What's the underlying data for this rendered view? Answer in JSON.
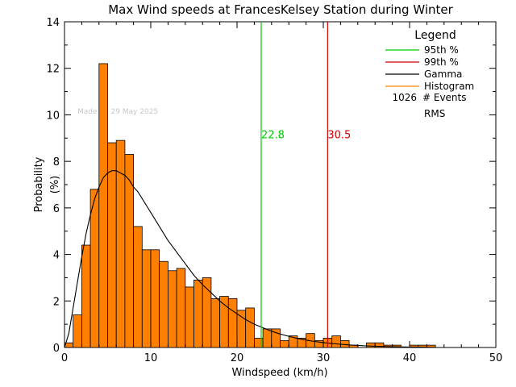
{
  "chart_data": {
    "type": "bar",
    "title": "Max Wind speeds at FrancesKelsey Station during Winter",
    "xlabel": "Windspeed (km/h)",
    "ylabel_lines": [
      "Probability",
      "(%)"
    ],
    "xlim": [
      0,
      50
    ],
    "ylim": [
      0,
      14
    ],
    "xticks": [
      "0",
      "10",
      "20",
      "30",
      "40",
      "50"
    ],
    "yticks": [
      "0",
      "2",
      "4",
      "6",
      "8",
      "10",
      "12",
      "14"
    ],
    "watermark": "Made on 29 May 2025",
    "bin_width": 1,
    "histogram": {
      "name": "Histogram",
      "bin_starts": [
        0,
        1,
        2,
        3,
        4,
        5,
        6,
        7,
        8,
        9,
        10,
        11,
        12,
        13,
        14,
        15,
        16,
        17,
        18,
        19,
        20,
        21,
        22,
        23,
        24,
        25,
        26,
        27,
        28,
        29,
        30,
        31,
        32,
        33,
        34,
        35,
        36,
        37,
        38,
        39,
        40,
        41,
        42,
        43,
        44,
        45,
        46,
        47,
        48,
        49
      ],
      "values": [
        0.2,
        1.4,
        4.4,
        6.8,
        12.2,
        8.8,
        8.9,
        8.3,
        5.2,
        4.2,
        4.2,
        3.7,
        3.3,
        3.4,
        2.6,
        2.9,
        3.0,
        2.1,
        2.2,
        2.1,
        1.6,
        1.7,
        0.4,
        0.8,
        0.8,
        0.3,
        0.5,
        0.4,
        0.6,
        0.3,
        0.4,
        0.5,
        0.3,
        0.1,
        0.0,
        0.2,
        0.2,
        0.1,
        0.1,
        0.0,
        0.1,
        0.1,
        0.1,
        0.0,
        0.0,
        0.0,
        0.0,
        0.0,
        0.0,
        0.0
      ],
      "color": "#ff8000"
    },
    "gamma": {
      "name": "Gamma",
      "x": [
        0,
        0.5,
        1,
        1.5,
        2,
        2.5,
        3,
        3.5,
        4,
        4.5,
        5,
        5.5,
        6,
        6.5,
        7,
        7.5,
        8,
        8.5,
        9,
        9.5,
        10,
        11,
        12,
        13,
        14,
        15,
        16,
        17,
        18,
        19,
        20,
        21,
        22,
        23,
        24,
        25,
        26,
        27,
        28,
        29,
        30,
        31,
        32,
        33,
        34,
        35,
        36,
        38,
        40,
        42,
        43
      ],
      "y": [
        0,
        0.6,
        1.7,
        2.8,
        3.9,
        4.9,
        5.7,
        6.4,
        6.9,
        7.3,
        7.5,
        7.6,
        7.6,
        7.5,
        7.4,
        7.2,
        6.9,
        6.7,
        6.4,
        6.1,
        5.8,
        5.2,
        4.6,
        4.1,
        3.6,
        3.1,
        2.7,
        2.35,
        2.0,
        1.7,
        1.45,
        1.2,
        1.0,
        0.85,
        0.7,
        0.58,
        0.48,
        0.39,
        0.32,
        0.26,
        0.21,
        0.17,
        0.14,
        0.11,
        0.09,
        0.07,
        0.055,
        0.035,
        0.02,
        0.01,
        0.005
      ],
      "color": "#000000"
    },
    "percentiles": [
      {
        "name": "95th %",
        "value": 22.8,
        "label": "22.8",
        "color": "#00cc00"
      },
      {
        "name": "99th %",
        "value": 30.5,
        "label": "30.5",
        "color": "#cc0000"
      }
    ],
    "legend": {
      "title": "Legend",
      "placement": "top-right",
      "entries": [
        {
          "label": "95th %",
          "color": "#00cc00"
        },
        {
          "label": "99th %",
          "color": "#cc0000"
        },
        {
          "label": "Gamma",
          "color": "#000000"
        },
        {
          "label": "Histogram",
          "color": "#ff8000"
        }
      ],
      "events_count": "1026",
      "events_label": "# Events",
      "rms_label": "RMS"
    }
  }
}
